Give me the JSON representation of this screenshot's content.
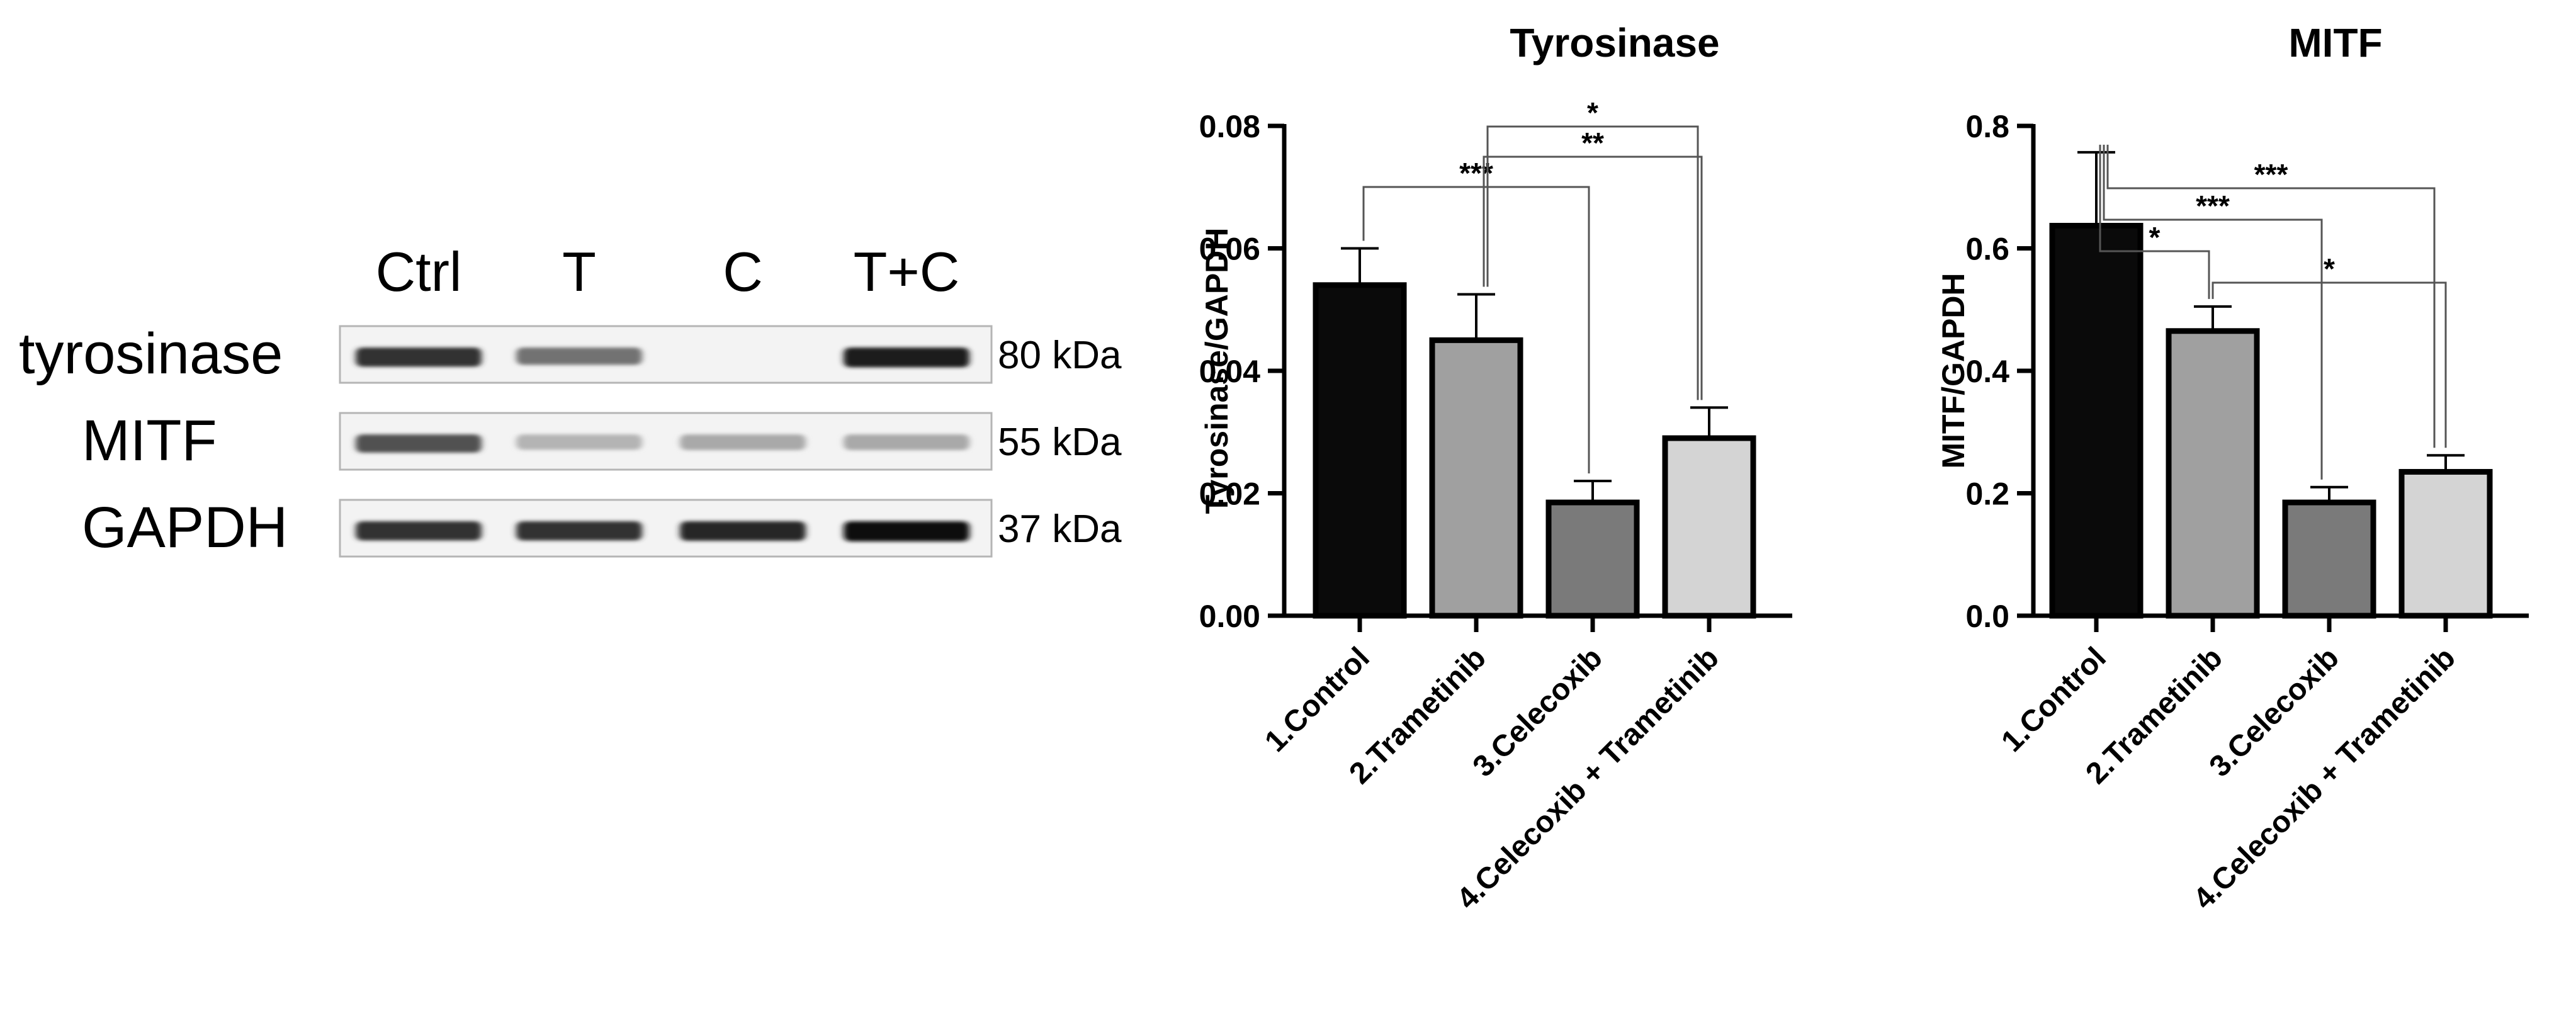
{
  "western_blot": {
    "lanes": [
      "Ctrl",
      "T",
      "C",
      "T+C"
    ],
    "bands": [
      {
        "protein": "tyrosinase",
        "size": "80 kDa",
        "intensity": [
          0.85,
          0.55,
          0.0,
          0.95
        ]
      },
      {
        "protein": "MITF",
        "size": "55 kDa",
        "intensity": [
          0.7,
          0.25,
          0.3,
          0.3
        ]
      },
      {
        "protein": "GAPDH",
        "size": "37 kDa",
        "intensity": [
          0.85,
          0.85,
          0.9,
          1.0
        ]
      }
    ]
  },
  "chart_data": [
    {
      "type": "bar",
      "title": "Tyrosinase",
      "ylabel": "Tyrosinase/GAPDH",
      "xlabel": "",
      "categories": [
        "1.Control",
        "2.Trametinib",
        "3.Celecoxib",
        "4.Celecoxib + Trametinib"
      ],
      "values": [
        0.054,
        0.045,
        0.0185,
        0.029
      ],
      "errors": [
        0.006,
        0.0075,
        0.0035,
        0.005
      ],
      "ylim": [
        0,
        0.08
      ],
      "yticks": [
        "0.00",
        "0.02",
        "0.04",
        "0.06",
        "0.08"
      ],
      "ytick_values": [
        0,
        0.02,
        0.04,
        0.06,
        0.08
      ],
      "colors": [
        "#0a0a0a",
        "#a0a0a0",
        "#7a7a7a",
        "#d4d4d4"
      ],
      "significance": [
        {
          "from": 0,
          "to": 2,
          "label": "***",
          "level": 1
        },
        {
          "from": 1,
          "to": 3,
          "label": "**",
          "level": 2
        },
        {
          "from": 1,
          "to": 3,
          "label": "*",
          "level": 3
        }
      ]
    },
    {
      "type": "bar",
      "title": "MITF",
      "ylabel": "MITF/GAPDH",
      "xlabel": "",
      "categories": [
        "1.Control",
        "2.Trametinib",
        "3.Celecoxib",
        "4.Celecoxib + Trametinib"
      ],
      "values": [
        0.637,
        0.465,
        0.185,
        0.235
      ],
      "errors": [
        0.12,
        0.04,
        0.025,
        0.027
      ],
      "ylim": [
        0,
        0.8
      ],
      "yticks": [
        "0.0",
        "0.2",
        "0.4",
        "0.6",
        "0.8"
      ],
      "ytick_values": [
        0,
        0.2,
        0.4,
        0.6,
        0.8
      ],
      "colors": [
        "#0a0a0a",
        "#a0a0a0",
        "#7a7a7a",
        "#d4d4d4"
      ],
      "significance": [
        {
          "from": 0,
          "to": 1,
          "label": "*",
          "level": 1
        },
        {
          "from": 0,
          "to": 2,
          "label": "***",
          "level": 2
        },
        {
          "from": 0,
          "to": 3,
          "label": "***",
          "level": 3
        },
        {
          "from": 1,
          "to": 3,
          "label": "*",
          "level": 0
        }
      ]
    }
  ]
}
